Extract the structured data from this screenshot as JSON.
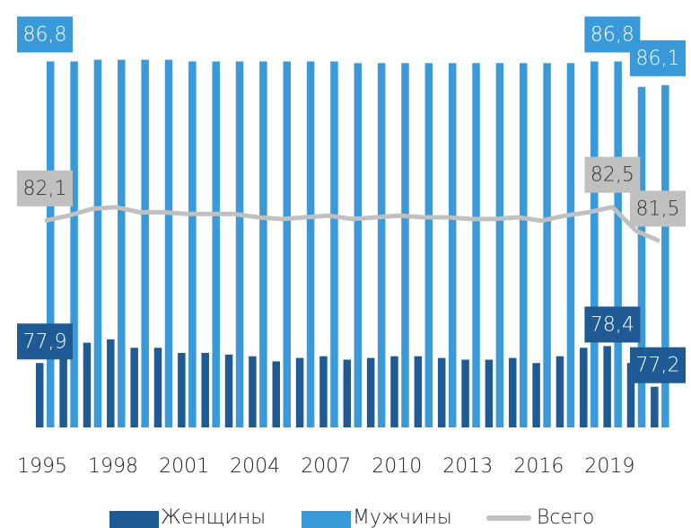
{
  "chart_data": {
    "type": "bar",
    "categories": [
      "1995",
      null,
      null,
      "1998",
      null,
      null,
      "2001",
      null,
      null,
      "2004",
      null,
      null,
      "2007",
      null,
      null,
      "2010",
      null,
      null,
      "2013",
      null,
      null,
      "2016",
      null,
      null,
      "2019",
      null,
      null
    ],
    "ylim": [
      76,
      87.5
    ],
    "series": [
      {
        "name": "Женщины",
        "color": "#1f5a94",
        "type": "bar",
        "values": [
          77.9,
          78.15,
          78.5,
          78.6,
          78.35,
          78.35,
          78.2,
          78.2,
          78.15,
          78.1,
          77.95,
          78.05,
          78.1,
          78.0,
          78.05,
          78.1,
          78.1,
          78.05,
          78.0,
          78.0,
          78.05,
          77.9,
          78.1,
          78.35,
          78.4,
          77.9,
          77.2
        ],
        "value_labels": [
          "77,9",
          null,
          null,
          null,
          null,
          null,
          null,
          null,
          null,
          null,
          null,
          null,
          null,
          null,
          null,
          null,
          null,
          null,
          null,
          null,
          null,
          null,
          null,
          null,
          "78,4",
          null,
          "77,2"
        ]
      },
      {
        "name": "Мужчины",
        "color": "#3a9ad9",
        "type": "bar",
        "values": [
          86.8,
          86.8,
          86.85,
          86.85,
          86.85,
          86.85,
          86.8,
          86.8,
          86.8,
          86.8,
          86.8,
          86.8,
          86.8,
          86.75,
          86.75,
          86.75,
          86.75,
          86.75,
          86.75,
          86.75,
          86.75,
          86.75,
          86.75,
          86.8,
          86.8,
          86.05,
          86.1
        ],
        "value_labels": [
          "86,8",
          null,
          null,
          null,
          null,
          null,
          null,
          null,
          null,
          null,
          null,
          null,
          null,
          null,
          null,
          null,
          null,
          null,
          null,
          null,
          null,
          null,
          null,
          null,
          "86,8",
          null,
          "86,1"
        ]
      },
      {
        "name": "Всего",
        "color": "#c0c0c0",
        "type": "line",
        "values": [
          82.1,
          82.25,
          82.45,
          82.5,
          82.35,
          82.35,
          82.3,
          82.3,
          82.3,
          82.2,
          82.15,
          82.2,
          82.25,
          82.15,
          82.2,
          82.25,
          82.2,
          82.2,
          82.15,
          82.15,
          82.2,
          82.1,
          82.25,
          82.35,
          82.5,
          81.8,
          81.5
        ],
        "value_labels": [
          "82,1",
          null,
          null,
          null,
          null,
          null,
          null,
          null,
          null,
          null,
          null,
          null,
          null,
          null,
          null,
          null,
          null,
          null,
          null,
          null,
          null,
          null,
          null,
          null,
          "82,5",
          null,
          "81,5"
        ]
      }
    ]
  }
}
